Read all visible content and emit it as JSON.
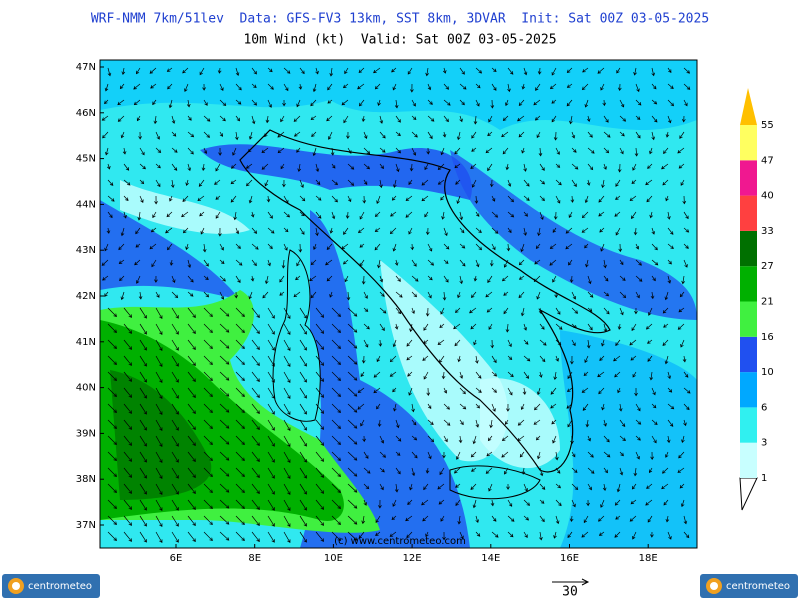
{
  "header": {
    "title": "WRF-NMM 7km/51lev  Data: GFS-FV3 13km, SST 8km, 3DVAR  Init: Sat 00Z 03-05-2025",
    "subtitle": "10m Wind (kt)  Valid: Sat 00Z 03-05-2025"
  },
  "map": {
    "lat_labels": [
      "47N",
      "46N",
      "45N",
      "44N",
      "43N",
      "42N",
      "41N",
      "40N",
      "39N",
      "38N",
      "37N"
    ],
    "lon_labels": [
      "6E",
      "8E",
      "10E",
      "12E",
      "14E",
      "16E",
      "18E"
    ],
    "watermark": "(c) www.centrometeo.com"
  },
  "legend": {
    "levels": [
      {
        "label": "1",
        "color": "#c8ffff"
      },
      {
        "label": "3",
        "color": "#30f0f0"
      },
      {
        "label": "6",
        "color": "#00a8ff"
      },
      {
        "label": "10",
        "color": "#2050f0"
      },
      {
        "label": "16",
        "color": "#40f040"
      },
      {
        "label": "21",
        "color": "#00b000"
      },
      {
        "label": "27",
        "color": "#007000"
      },
      {
        "label": "33",
        "color": "#ff4040"
      },
      {
        "label": "40",
        "color": "#f01890"
      },
      {
        "label": "47",
        "color": "#ffff60"
      },
      {
        "label": "55",
        "color": "#ffc000"
      }
    ]
  },
  "reference_vector": "30",
  "logos": [
    "centrometeo",
    "centrometeo"
  ]
}
